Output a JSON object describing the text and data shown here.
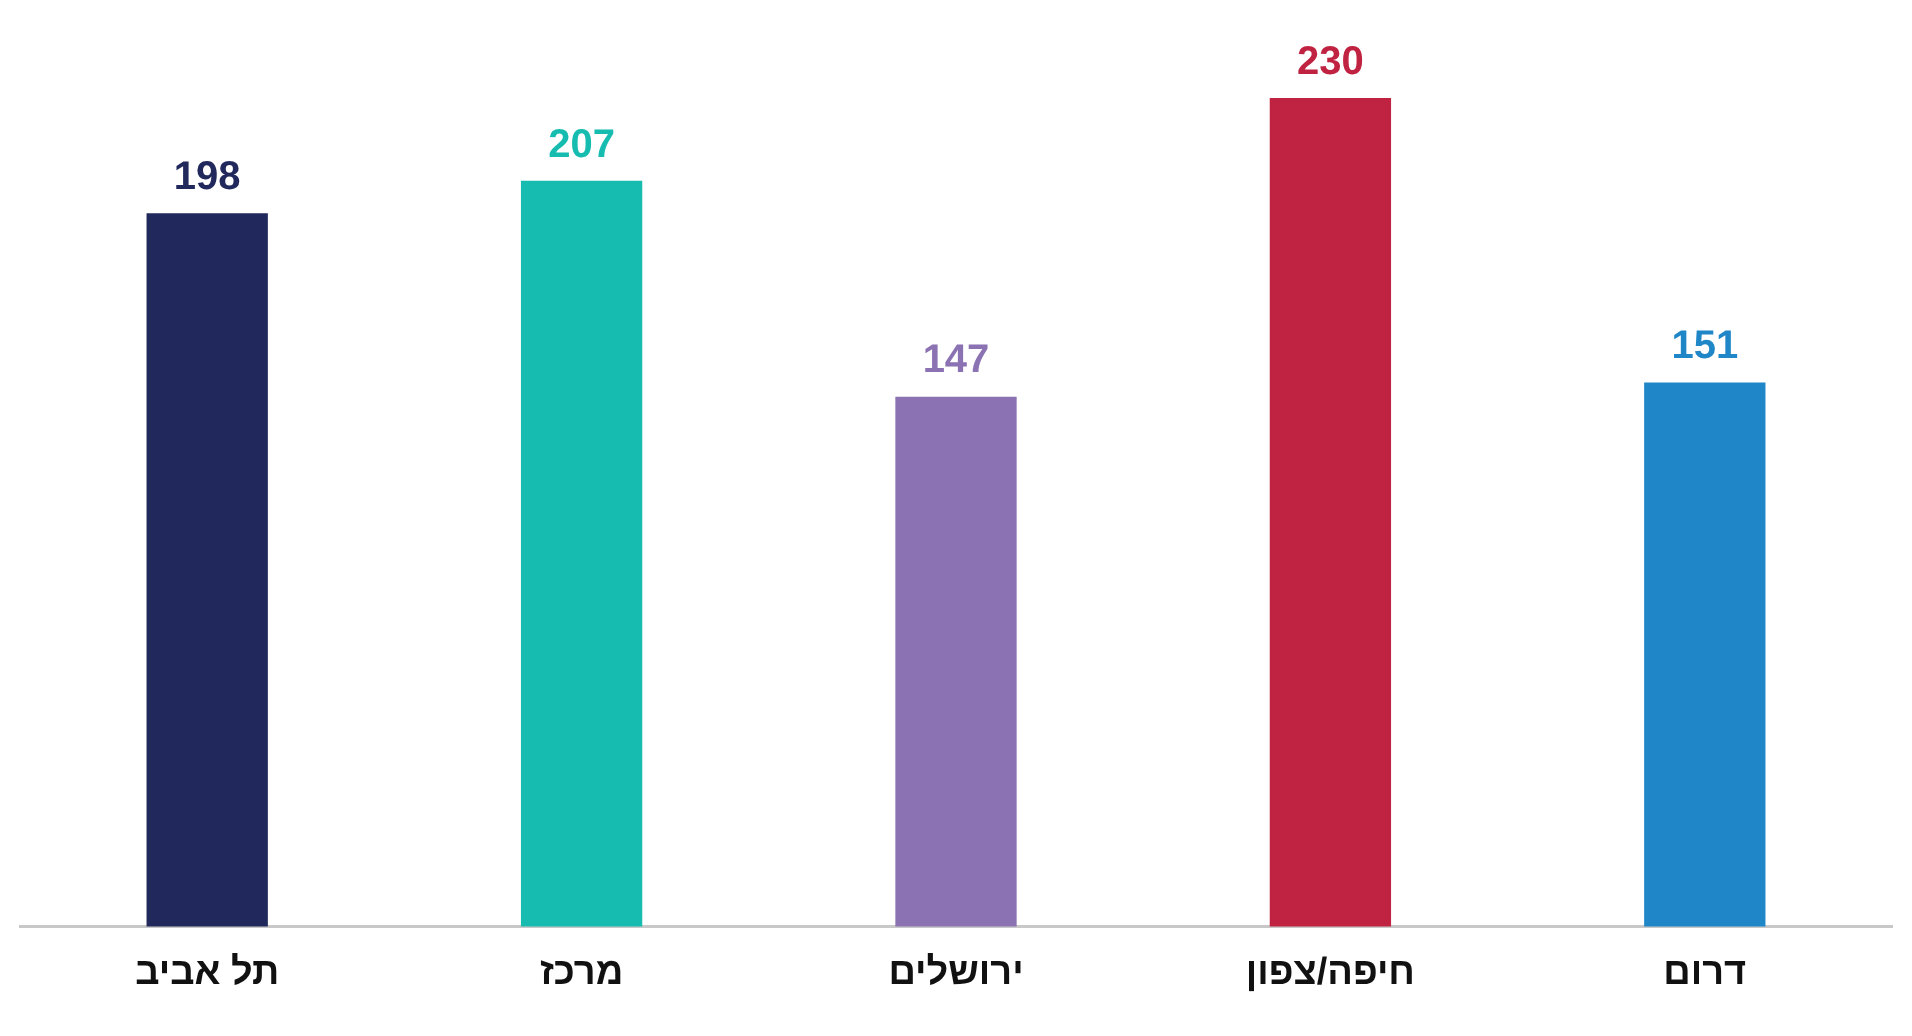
{
  "chart_data": {
    "type": "bar",
    "categories": [
      "תל אביב",
      "מרכז",
      "ירושלים",
      "חיפה/צפון",
      "דרום"
    ],
    "values": [
      198,
      207,
      147,
      230,
      151
    ],
    "colors": [
      "#21295c",
      "#17bcb0",
      "#8b72b2",
      "#c02342",
      "#1f86c8"
    ],
    "data_labels": true,
    "grid": false,
    "legend": false
  }
}
